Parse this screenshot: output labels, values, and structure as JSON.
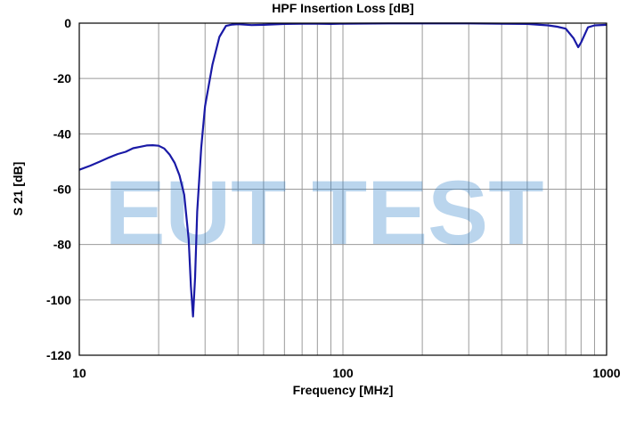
{
  "chart_data": {
    "type": "line",
    "title": "HPF Insertion Loss [dB]",
    "xlabel": "Frequency [MHz]",
    "ylabel": "S 21 [dB]",
    "x_scale": "log",
    "xlim": [
      10,
      1000
    ],
    "ylim": [
      -120,
      0
    ],
    "x_ticks": [
      10,
      100,
      1000
    ],
    "x_tick_labels": [
      "10",
      "100",
      "1000"
    ],
    "y_ticks": [
      0,
      -20,
      -40,
      -60,
      -80,
      -100,
      -120
    ],
    "y_tick_labels": [
      "0",
      "-20",
      "-40",
      "-60",
      "-80",
      "-100",
      "-120"
    ],
    "grid": true,
    "watermark": "EUT TEST",
    "colors": {
      "series": "#1a1aa6",
      "watermark": "#2f80c8",
      "grid": "#9a9a9a"
    },
    "series": [
      {
        "x": [
          10,
          11,
          12,
          13,
          14,
          15,
          16,
          17,
          18,
          19,
          20,
          21,
          22,
          23,
          24,
          25,
          26,
          26.5,
          27,
          27.5,
          28,
          29,
          30,
          32,
          34,
          36,
          38,
          40,
          45,
          50,
          60,
          70,
          80,
          90,
          100,
          150,
          200,
          300,
          400,
          500,
          600,
          650,
          700,
          750,
          780,
          800,
          850,
          900,
          1000
        ],
        "y": [
          -53,
          -51.5,
          -50,
          -48.5,
          -47.3,
          -46.5,
          -45.2,
          -44.7,
          -44.2,
          -44.1,
          -44.3,
          -45.3,
          -47.5,
          -50.5,
          -55,
          -62,
          -78,
          -95,
          -106,
          -92,
          -68,
          -45,
          -30,
          -15,
          -5,
          -1,
          -0.5,
          -0.4,
          -0.7,
          -0.6,
          -0.3,
          -0.2,
          -0.2,
          -0.3,
          -0.2,
          -0.1,
          -0.1,
          -0.1,
          -0.2,
          -0.3,
          -0.8,
          -1.3,
          -2,
          -5.5,
          -8.7,
          -7,
          -1.5,
          -0.8,
          -0.6
        ]
      }
    ]
  }
}
